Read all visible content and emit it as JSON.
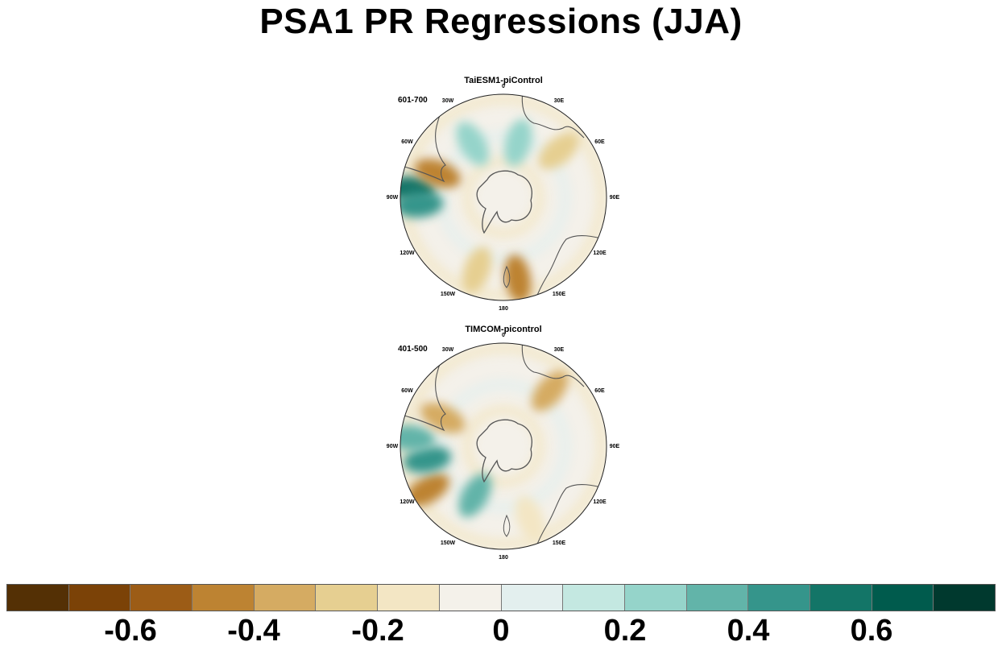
{
  "title": "PSA1 PR Regressions (JJA)",
  "panels": [
    {
      "title": "TaiESM1-piControl",
      "period": "601-700",
      "lon_labels": {
        "l0": "0",
        "l30e": "30E",
        "l60e": "60E",
        "l90e": "90E",
        "l120e": "120E",
        "l150e": "150E",
        "l180": "180",
        "l150w": "150W",
        "l120w": "120W",
        "l90w": "90W",
        "l60w": "60W",
        "l30w": "30W"
      },
      "anomalies": [
        {
          "lon": -85,
          "r": 0.9,
          "value": 0.6
        },
        {
          "lon": -95,
          "r": 0.82,
          "value": 0.4
        },
        {
          "lon": -70,
          "r": 0.68,
          "value": -0.5
        },
        {
          "lon": 170,
          "r": 0.8,
          "value": -0.5
        },
        {
          "lon": -160,
          "r": 0.75,
          "value": -0.3
        },
        {
          "lon": 50,
          "r": 0.7,
          "value": -0.3
        },
        {
          "lon": 15,
          "r": 0.55,
          "value": 0.2
        },
        {
          "lon": -30,
          "r": 0.6,
          "value": 0.2
        }
      ]
    },
    {
      "title": "TIMCOM-picontrol",
      "period": "401-500",
      "lon_labels": {
        "l0": "0",
        "l30e": "30E",
        "l60e": "60E",
        "l90e": "90E",
        "l120e": "120E",
        "l150e": "150E",
        "l180": "180",
        "l150w": "150W",
        "l120w": "120W",
        "l90w": "90W",
        "l60w": "60W",
        "l30w": "30W"
      },
      "anomalies": [
        {
          "lon": -120,
          "r": 0.85,
          "value": -0.5
        },
        {
          "lon": -100,
          "r": 0.75,
          "value": 0.4
        },
        {
          "lon": -85,
          "r": 0.9,
          "value": 0.3
        },
        {
          "lon": -65,
          "r": 0.65,
          "value": -0.4
        },
        {
          "lon": 40,
          "r": 0.7,
          "value": -0.4
        },
        {
          "lon": -150,
          "r": 0.55,
          "value": 0.3
        },
        {
          "lon": 160,
          "r": 0.75,
          "value": -0.2
        }
      ]
    }
  ],
  "colorbar": {
    "colors": [
      "#543005",
      "#7b4207",
      "#9c5c16",
      "#bd8332",
      "#d5ab62",
      "#e6cf91",
      "#f3e6c4",
      "#f4f1ea",
      "#e3efee",
      "#c4e8e1",
      "#95d4ca",
      "#62b4a9",
      "#35958b",
      "#137567",
      "#005b4d",
      "#00392e"
    ],
    "labels": [
      "-0.6",
      "-0.4",
      "-0.2",
      "0",
      "0.2",
      "0.4",
      "0.6"
    ]
  }
}
